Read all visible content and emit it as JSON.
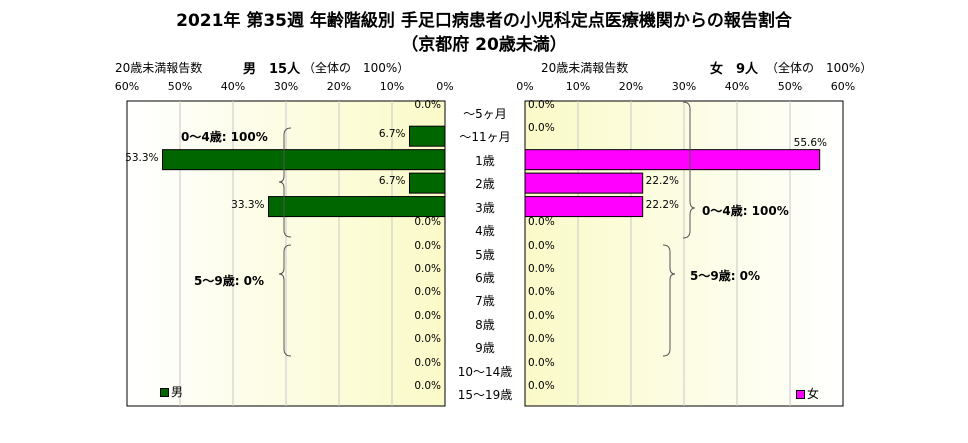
{
  "chart_data": {
    "type": "bar",
    "orientation": "horizontal-butterfly",
    "title": "2021年 第35週 年齢階級別 手足口病患者の小児科定点医療機関からの報告割合",
    "subtitle": "（京都府 20歳未満）",
    "categories": [
      "～5ヶ月",
      "～11ヶ月",
      "1歳",
      "2歳",
      "3歳",
      "4歳",
      "5歳",
      "6歳",
      "7歳",
      "8歳",
      "9歳",
      "10～14歳",
      "15～19歳"
    ],
    "series": [
      {
        "name": "男",
        "header_label": "20歳未満報告数",
        "header_count": "男　15人",
        "header_note": "（全体の　100%）",
        "color": "#006600",
        "values": [
          0.0,
          6.7,
          53.3,
          6.7,
          33.3,
          0.0,
          0.0,
          0.0,
          0.0,
          0.0,
          0.0,
          0.0,
          0.0
        ],
        "value_labels": [
          "0.0%",
          "6.7%",
          "53.3%",
          "6.7%",
          "33.3%",
          "0.0%",
          "0.0%",
          "0.0%",
          "0.0%",
          "0.0%",
          "0.0%",
          "0.0%",
          "0.0%"
        ],
        "group_labels": [
          "0～4歳: 100%",
          "5～9歳: 0%"
        ]
      },
      {
        "name": "女",
        "header_label": "20歳未満報告数",
        "header_count": "女　9人",
        "header_note": "（全体の　100%）",
        "color": "#ff00ff",
        "values": [
          0.0,
          0.0,
          55.6,
          22.2,
          22.2,
          0.0,
          0.0,
          0.0,
          0.0,
          0.0,
          0.0,
          0.0,
          0.0
        ],
        "value_labels": [
          "0.0%",
          "0.0%",
          "55.6%",
          "22.2%",
          "22.2%",
          "0.0%",
          "0.0%",
          "0.0%",
          "0.0%",
          "0.0%",
          "0.0%",
          "0.0%",
          "0.0%"
        ],
        "group_labels": [
          "0～4歳: 100%",
          "5～9歳: 0%"
        ]
      }
    ],
    "male_ticks": [
      "60%",
      "50%",
      "40%",
      "30%",
      "20%",
      "10%",
      "0%"
    ],
    "female_ticks": [
      "0%",
      "10%",
      "20%",
      "30%",
      "40%",
      "50%",
      "60%"
    ],
    "xlim": [
      0,
      60
    ],
    "grid": true,
    "legend": "bottom-left"
  }
}
